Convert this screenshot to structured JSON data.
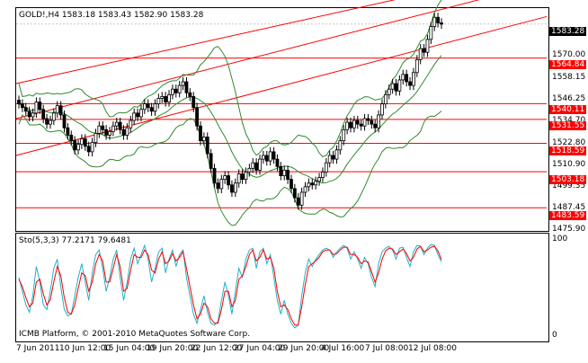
{
  "chart_header": {
    "symbol": "GOLD!,H4",
    "ohlc": "1583.18 1583.43 1582.90 1583.28"
  },
  "price_axis": {
    "ticks": [
      "1570.00",
      "1558.15",
      "1546.25",
      "1534.70",
      "1522.80",
      "1510.90",
      "1499.35",
      "1487.45",
      "1475.90"
    ],
    "current_price": "1583.28",
    "level_labels": [
      "1564.84",
      "1540.11",
      "1531.55",
      "1518.59",
      "1503.18",
      "1483.59"
    ]
  },
  "time_axis": {
    "ticks": [
      "7 Jun 2011",
      "10 Jun 12:00",
      "15 Jun 04:00",
      "19 Jun 20:00",
      "22 Jun 12:00",
      "27 Jun 04:00",
      "29 Jun 20:00",
      "4 Jul 16:00",
      "7 Jul 08:00",
      "12 Jul 08:00"
    ]
  },
  "stochastic": {
    "label": "Sto(5,3,3) 77.2171 79.6481",
    "axis_top": "100",
    "axis_bottom": "0"
  },
  "copyright": "ICMB Platform, © 2001-2010 MetaQuotes Software Corp.",
  "colors": {
    "background": "#ffffff",
    "candles": "#000000",
    "bands": "#2e8b2e",
    "channel_lines": "#ff0000",
    "level_lines": "#ff0000",
    "stoch_main": "#20b2c8",
    "stoch_signal": "#ff0000"
  },
  "chart_data": {
    "type": "candlestick",
    "indicators": [
      "Bollinger Bands",
      "Stochastic(5,3,3)"
    ],
    "horizontal_levels": [
      1564.84,
      1540.11,
      1531.55,
      1518.59,
      1503.18,
      1483.59
    ],
    "closes": [
      1540,
      1538,
      1536,
      1533,
      1535,
      1541,
      1537,
      1532,
      1529,
      1531,
      1535,
      1539,
      1534,
      1527,
      1523,
      1520,
      1515,
      1518,
      1521,
      1517,
      1514,
      1519,
      1524,
      1528,
      1526,
      1523,
      1525,
      1528,
      1530,
      1526,
      1523,
      1527,
      1531,
      1535,
      1533,
      1537,
      1540,
      1538,
      1536,
      1540,
      1543,
      1544,
      1541,
      1545,
      1548,
      1546,
      1550,
      1552,
      1546,
      1544,
      1538,
      1528,
      1520,
      1522,
      1513,
      1505,
      1497,
      1494,
      1499,
      1501,
      1496,
      1492,
      1497,
      1502,
      1499,
      1503,
      1505,
      1508,
      1504,
      1510,
      1512,
      1509,
      1514,
      1510,
      1506,
      1501,
      1504,
      1499,
      1494,
      1489,
      1485,
      1492,
      1495,
      1497,
      1496,
      1498,
      1500,
      1503,
      1508,
      1512,
      1510,
      1515,
      1520,
      1526,
      1530,
      1527,
      1531,
      1529,
      1528,
      1532,
      1531,
      1529,
      1527,
      1534,
      1540,
      1545,
      1548,
      1551,
      1547,
      1553,
      1556,
      1552,
      1550,
      1557,
      1564,
      1570,
      1568,
      1575,
      1582,
      1587,
      1584,
      1583.28
    ],
    "stoch_main": [
      60,
      45,
      30,
      22,
      40,
      72,
      55,
      30,
      25,
      45,
      70,
      80,
      50,
      25,
      18,
      20,
      40,
      60,
      75,
      55,
      35,
      65,
      85,
      90,
      70,
      45,
      60,
      80,
      90,
      60,
      35,
      55,
      80,
      92,
      75,
      85,
      95,
      80,
      55,
      70,
      88,
      92,
      65,
      80,
      90,
      72,
      85,
      90,
      60,
      40,
      20,
      10,
      25,
      40,
      22,
      10,
      8,
      12,
      35,
      55,
      40,
      20,
      45,
      70,
      60,
      80,
      90,
      92,
      70,
      88,
      92,
      75,
      85,
      60,
      35,
      20,
      35,
      20,
      10,
      5,
      8,
      40,
      65,
      80,
      72,
      80,
      85,
      90,
      92,
      90,
      82,
      88,
      92,
      95,
      92,
      80,
      88,
      80,
      70,
      82,
      75,
      60,
      50,
      75,
      88,
      92,
      94,
      90,
      80,
      92,
      93,
      82,
      72,
      88,
      95,
      94,
      85,
      92,
      96,
      95,
      85,
      77
    ],
    "stoch_signal": [
      58,
      50,
      38,
      28,
      32,
      55,
      58,
      42,
      30,
      36,
      55,
      72,
      62,
      38,
      22,
      20,
      30,
      48,
      65,
      62,
      45,
      55,
      75,
      85,
      78,
      55,
      55,
      70,
      85,
      72,
      45,
      48,
      68,
      85,
      82,
      82,
      90,
      85,
      68,
      65,
      80,
      88,
      75,
      78,
      86,
      78,
      82,
      88,
      70,
      50,
      30,
      15,
      20,
      32,
      28,
      15,
      10,
      10,
      25,
      45,
      45,
      28,
      35,
      58,
      62,
      72,
      85,
      90,
      78,
      82,
      90,
      80,
      82,
      70,
      45,
      28,
      30,
      25,
      15,
      8,
      8,
      28,
      52,
      72,
      75,
      78,
      82,
      88,
      90,
      90,
      85,
      86,
      90,
      93,
      93,
      85,
      85,
      82,
      75,
      78,
      77,
      66,
      55,
      65,
      80,
      89,
      92,
      91,
      85,
      88,
      91,
      86,
      78,
      82,
      91,
      94,
      88,
      90,
      93,
      94,
      89,
      79.65
    ]
  }
}
